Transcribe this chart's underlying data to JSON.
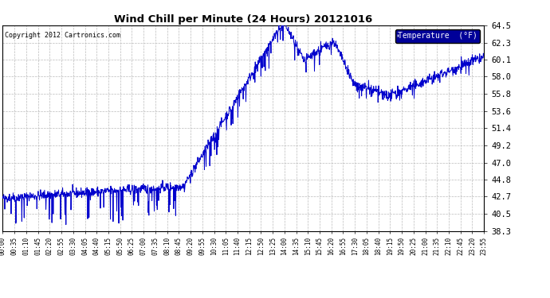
{
  "title": "Wind Chill per Minute (24 Hours) 20121016",
  "copyright": "Copyright 2012 Cartronics.com",
  "legend_label": "Temperature  (°F)",
  "line_color": "#0000cc",
  "background_color": "#ffffff",
  "grid_color": "#bbbbbb",
  "ylim": [
    38.3,
    64.5
  ],
  "yticks": [
    38.3,
    40.5,
    42.7,
    44.8,
    47.0,
    49.2,
    51.4,
    53.6,
    55.8,
    58.0,
    60.1,
    62.3,
    64.5
  ],
  "xtick_labels": [
    "00:00",
    "00:35",
    "01:10",
    "01:45",
    "02:20",
    "02:55",
    "03:30",
    "04:05",
    "04:40",
    "05:15",
    "05:50",
    "06:25",
    "07:00",
    "07:35",
    "08:10",
    "08:45",
    "09:20",
    "09:55",
    "10:30",
    "11:05",
    "11:40",
    "12:15",
    "12:50",
    "13:25",
    "14:00",
    "14:35",
    "15:10",
    "15:45",
    "16:20",
    "16:55",
    "17:30",
    "18:05",
    "18:40",
    "19:15",
    "19:50",
    "20:25",
    "21:00",
    "21:35",
    "22:10",
    "22:45",
    "23:20",
    "23:55"
  ],
  "legend_bg": "#000099",
  "legend_text_color": "#ffffff"
}
